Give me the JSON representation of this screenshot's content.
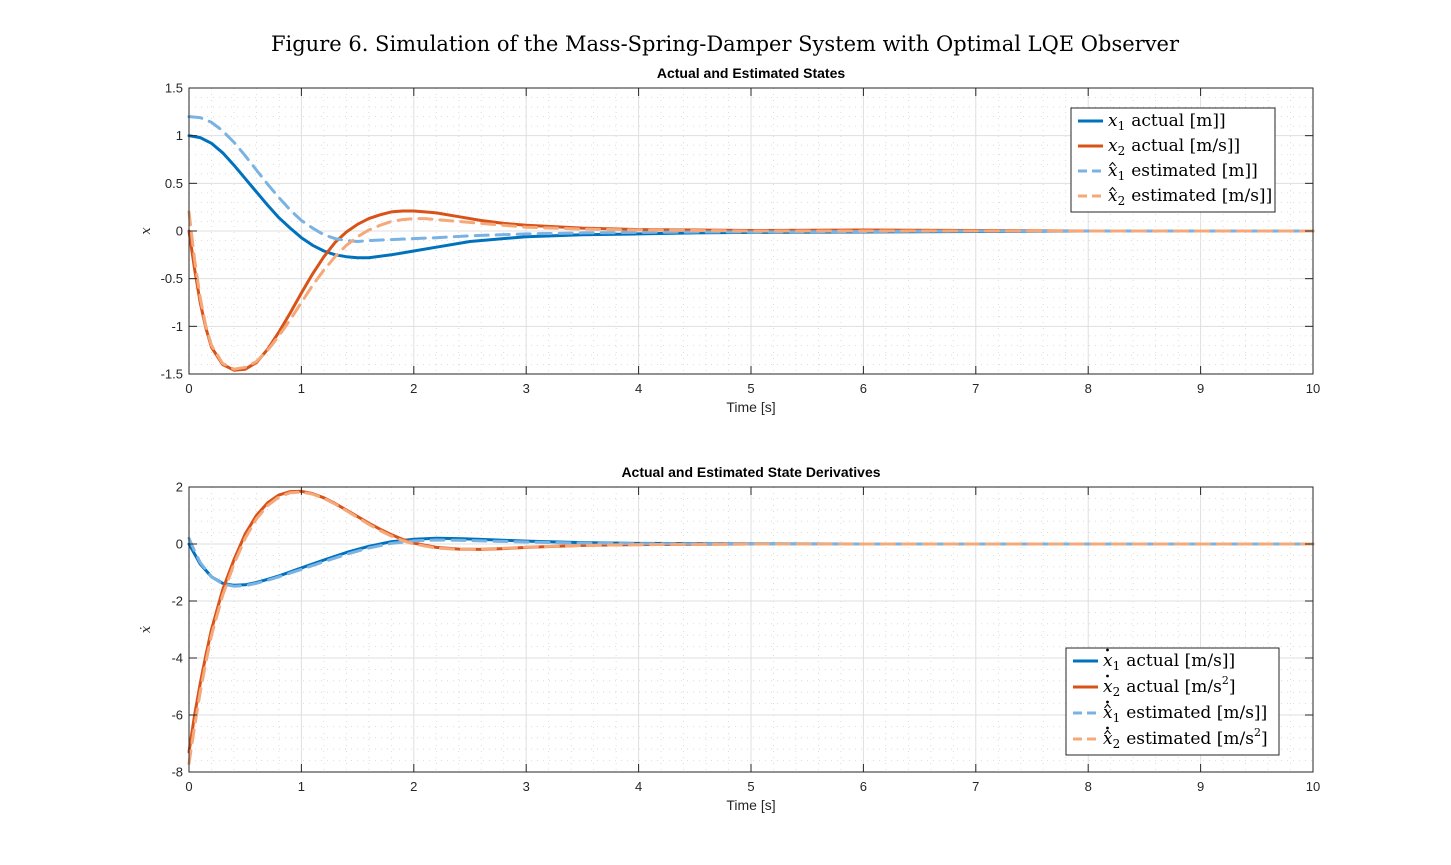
{
  "figure_title": "Figure 6. Simulation of the Mass-Spring-Damper System with Optimal LQE Observer",
  "chart_data": [
    {
      "type": "line",
      "title": "Actual and Estimated States",
      "xlabel": "Time [s]",
      "ylabel": "x",
      "xlim": [
        0,
        10
      ],
      "ylim": [
        -1.5,
        1.5
      ],
      "xticks": [
        0,
        1,
        2,
        3,
        4,
        5,
        6,
        7,
        8,
        9,
        10
      ],
      "yticks": [
        -1.5,
        -1,
        -0.5,
        0,
        0.5,
        1,
        1.5
      ],
      "xtick_labels": [
        "0",
        "1",
        "2",
        "3",
        "4",
        "5",
        "6",
        "7",
        "8",
        "9",
        "10"
      ],
      "ytick_labels": [
        "-1.5",
        "-1",
        "-0.5",
        "0",
        "0.5",
        "1",
        "1.5"
      ],
      "grid": "major and minor",
      "legend_position": "top-right",
      "series": [
        {
          "name": "x1 actual [m]",
          "legend": {
            "sym": "x",
            "hat": false,
            "dot": false,
            "sub": "1",
            "text": "actual [m]",
            "sup": ""
          },
          "color": "#0072BD",
          "style": "solid",
          "x": [
            0,
            0.1,
            0.2,
            0.3,
            0.4,
            0.5,
            0.6,
            0.7,
            0.8,
            0.9,
            1.0,
            1.1,
            1.2,
            1.3,
            1.4,
            1.5,
            1.6,
            1.8,
            2.0,
            2.2,
            2.5,
            3.0,
            3.5,
            4.0,
            4.5,
            5.0,
            6.0,
            7.0,
            8.0,
            9.0,
            10.0
          ],
          "y": [
            1.0,
            0.98,
            0.92,
            0.82,
            0.69,
            0.55,
            0.41,
            0.27,
            0.14,
            0.03,
            -0.07,
            -0.15,
            -0.21,
            -0.25,
            -0.27,
            -0.28,
            -0.28,
            -0.25,
            -0.21,
            -0.17,
            -0.11,
            -0.06,
            -0.04,
            -0.03,
            -0.02,
            -0.015,
            -0.01,
            -0.005,
            0,
            0,
            0
          ]
        },
        {
          "name": "x2 actual [m/s]",
          "legend": {
            "sym": "x",
            "hat": false,
            "dot": false,
            "sub": "2",
            "text": "actual [m/s]",
            "sup": ""
          },
          "color": "#D95319",
          "style": "solid",
          "x": [
            0,
            0.05,
            0.1,
            0.15,
            0.2,
            0.3,
            0.4,
            0.5,
            0.6,
            0.7,
            0.8,
            0.9,
            1.0,
            1.1,
            1.2,
            1.3,
            1.4,
            1.5,
            1.6,
            1.7,
            1.8,
            1.9,
            2.0,
            2.1,
            2.2,
            2.4,
            2.6,
            2.8,
            3.0,
            3.5,
            4.0,
            4.5,
            5.0,
            6.0,
            7.0,
            8.0,
            9.0,
            10.0
          ],
          "y": [
            0,
            -0.4,
            -0.75,
            -1.02,
            -1.22,
            -1.4,
            -1.46,
            -1.45,
            -1.38,
            -1.24,
            -1.06,
            -0.86,
            -0.65,
            -0.45,
            -0.27,
            -0.12,
            -0.01,
            0.07,
            0.13,
            0.17,
            0.2,
            0.21,
            0.21,
            0.2,
            0.19,
            0.15,
            0.11,
            0.08,
            0.06,
            0.03,
            0.015,
            0.01,
            0.005,
            0.01,
            0.005,
            0,
            0,
            0
          ]
        },
        {
          "name": "x1 estimated [m]",
          "legend": {
            "sym": "x",
            "hat": true,
            "dot": false,
            "sub": "1",
            "text": "estimated [m]",
            "sup": ""
          },
          "color": "#4DBEEE",
          "stroke": "#7AB3E3",
          "style": "dashed",
          "x": [
            0,
            0.1,
            0.2,
            0.3,
            0.4,
            0.5,
            0.6,
            0.7,
            0.8,
            0.9,
            1.0,
            1.1,
            1.2,
            1.3,
            1.4,
            1.5,
            1.6,
            1.8,
            2.0,
            2.2,
            2.5,
            3.0,
            3.5,
            4.0,
            4.5,
            5.0,
            6.0,
            7.0,
            8.0,
            9.0,
            10.0
          ],
          "y": [
            1.2,
            1.19,
            1.14,
            1.05,
            0.93,
            0.79,
            0.64,
            0.49,
            0.35,
            0.22,
            0.11,
            0.03,
            -0.04,
            -0.08,
            -0.1,
            -0.11,
            -0.1,
            -0.09,
            -0.08,
            -0.07,
            -0.05,
            -0.03,
            -0.02,
            -0.015,
            -0.01,
            -0.01,
            -0.005,
            0,
            0,
            0,
            0
          ]
        },
        {
          "name": "x2 estimated [m/s]",
          "legend": {
            "sym": "x",
            "hat": true,
            "dot": false,
            "sub": "2",
            "text": "estimated [m/s]",
            "sup": ""
          },
          "color": "#F5A97A",
          "stroke": "#F5A97A",
          "style": "dashed",
          "x": [
            0,
            0.05,
            0.1,
            0.15,
            0.2,
            0.3,
            0.4,
            0.5,
            0.6,
            0.7,
            0.8,
            0.9,
            1.0,
            1.1,
            1.2,
            1.3,
            1.4,
            1.5,
            1.6,
            1.7,
            1.8,
            1.9,
            2.0,
            2.1,
            2.2,
            2.4,
            2.6,
            2.8,
            3.0,
            3.5,
            4.0,
            4.5,
            5.0,
            6.0,
            7.0,
            8.0,
            9.0,
            10.0
          ],
          "y": [
            0.2,
            -0.3,
            -0.7,
            -1.0,
            -1.2,
            -1.39,
            -1.45,
            -1.43,
            -1.37,
            -1.25,
            -1.1,
            -0.93,
            -0.75,
            -0.57,
            -0.41,
            -0.27,
            -0.15,
            -0.06,
            0.01,
            0.06,
            0.1,
            0.12,
            0.13,
            0.13,
            0.12,
            0.1,
            0.08,
            0.06,
            0.04,
            0.02,
            0.01,
            0.005,
            0,
            0,
            0,
            0,
            0,
            0
          ]
        }
      ]
    },
    {
      "type": "line",
      "title": "Actual and Estimated State Derivatives",
      "xlabel": "Time [s]",
      "ylabel": "ẋ",
      "xlim": [
        0,
        10
      ],
      "ylim": [
        -8,
        2
      ],
      "xticks": [
        0,
        1,
        2,
        3,
        4,
        5,
        6,
        7,
        8,
        9,
        10
      ],
      "yticks": [
        -8,
        -6,
        -4,
        -2,
        0,
        2
      ],
      "xtick_labels": [
        "0",
        "1",
        "2",
        "3",
        "4",
        "5",
        "6",
        "7",
        "8",
        "9",
        "10"
      ],
      "ytick_labels": [
        "-8",
        "-6",
        "-4",
        "-2",
        "0",
        "2"
      ],
      "grid": "major and minor",
      "legend_position": "bottom-right",
      "series": [
        {
          "name": "ẋ1 actual [m/s]",
          "legend": {
            "sym": "x",
            "hat": false,
            "dot": true,
            "sub": "1",
            "text": "actual [m/s]",
            "sup": ""
          },
          "color": "#0072BD",
          "style": "solid",
          "x": [
            0,
            0.05,
            0.1,
            0.2,
            0.3,
            0.4,
            0.5,
            0.6,
            0.7,
            0.8,
            0.9,
            1.0,
            1.2,
            1.4,
            1.6,
            1.8,
            2.0,
            2.2,
            2.4,
            2.6,
            3.0,
            3.5,
            4.0,
            5.0,
            6.0,
            7.0,
            8.0,
            9.0,
            10.0
          ],
          "y": [
            0,
            -0.35,
            -0.7,
            -1.15,
            -1.38,
            -1.45,
            -1.43,
            -1.35,
            -1.24,
            -1.12,
            -0.98,
            -0.84,
            -0.56,
            -0.3,
            -0.08,
            0.08,
            0.17,
            0.2,
            0.19,
            0.16,
            0.1,
            0.05,
            0.02,
            0.01,
            0,
            0,
            0,
            0,
            0
          ]
        },
        {
          "name": "ẋ2 actual [m/s²]",
          "legend": {
            "sym": "x",
            "hat": false,
            "dot": true,
            "sub": "2",
            "text": "actual [m/s",
            "sup": "2"
          },
          "color": "#D95319",
          "style": "solid",
          "x": [
            0,
            0.05,
            0.1,
            0.15,
            0.2,
            0.3,
            0.4,
            0.5,
            0.6,
            0.7,
            0.8,
            0.9,
            1.0,
            1.1,
            1.2,
            1.3,
            1.4,
            1.5,
            1.6,
            1.7,
            1.8,
            1.9,
            2.0,
            2.2,
            2.4,
            2.6,
            2.8,
            3.0,
            3.5,
            4.0,
            5.0,
            6.0,
            7.0,
            8.0,
            9.0,
            10.0
          ],
          "y": [
            -7.3,
            -6.0,
            -4.9,
            -3.9,
            -3.0,
            -1.6,
            -0.55,
            0.35,
            1.0,
            1.45,
            1.72,
            1.84,
            1.85,
            1.77,
            1.62,
            1.42,
            1.19,
            0.96,
            0.73,
            0.52,
            0.33,
            0.16,
            0.03,
            -0.12,
            -0.18,
            -0.19,
            -0.16,
            -0.12,
            -0.05,
            -0.02,
            0,
            0,
            0,
            0,
            0,
            0
          ]
        },
        {
          "name": "ẋ1 estimated [m/s]",
          "legend": {
            "sym": "x",
            "hat": true,
            "dot": true,
            "sub": "1",
            "text": "estimated [m/s]",
            "sup": ""
          },
          "color": "#4DBEEE",
          "stroke": "#7AB3E3",
          "style": "dashed",
          "x": [
            0,
            0.05,
            0.1,
            0.2,
            0.3,
            0.4,
            0.5,
            0.6,
            0.7,
            0.8,
            0.9,
            1.0,
            1.2,
            1.4,
            1.6,
            1.8,
            2.0,
            2.2,
            2.4,
            2.6,
            3.0,
            3.5,
            4.0,
            5.0,
            6.0,
            7.0,
            8.0,
            9.0,
            10.0
          ],
          "y": [
            0.2,
            -0.25,
            -0.65,
            -1.15,
            -1.4,
            -1.48,
            -1.46,
            -1.38,
            -1.27,
            -1.15,
            -1.02,
            -0.89,
            -0.62,
            -0.36,
            -0.14,
            0.02,
            0.11,
            0.14,
            0.13,
            0.11,
            0.07,
            0.03,
            0.01,
            0,
            0,
            0,
            0,
            0,
            0
          ]
        },
        {
          "name": "ẋ2 estimated [m/s²]",
          "legend": {
            "sym": "x",
            "hat": true,
            "dot": true,
            "sub": "2",
            "text": "estimated [m/s",
            "sup": "2"
          },
          "color": "#F5A97A",
          "stroke": "#F5A97A",
          "style": "dashed",
          "x": [
            0,
            0.05,
            0.1,
            0.15,
            0.2,
            0.3,
            0.4,
            0.5,
            0.6,
            0.7,
            0.8,
            0.9,
            1.0,
            1.1,
            1.2,
            1.3,
            1.4,
            1.5,
            1.6,
            1.7,
            1.8,
            1.9,
            2.0,
            2.2,
            2.4,
            2.6,
            2.8,
            3.0,
            3.5,
            4.0,
            5.0,
            6.0,
            7.0,
            8.0,
            9.0,
            10.0
          ],
          "y": [
            -7.7,
            -6.4,
            -5.2,
            -4.15,
            -3.2,
            -1.8,
            -0.7,
            0.2,
            0.88,
            1.35,
            1.65,
            1.8,
            1.82,
            1.75,
            1.6,
            1.4,
            1.17,
            0.93,
            0.69,
            0.47,
            0.28,
            0.12,
            0.0,
            -0.14,
            -0.19,
            -0.18,
            -0.15,
            -0.11,
            -0.05,
            -0.02,
            0,
            0,
            0,
            0,
            0,
            0
          ]
        }
      ]
    }
  ]
}
